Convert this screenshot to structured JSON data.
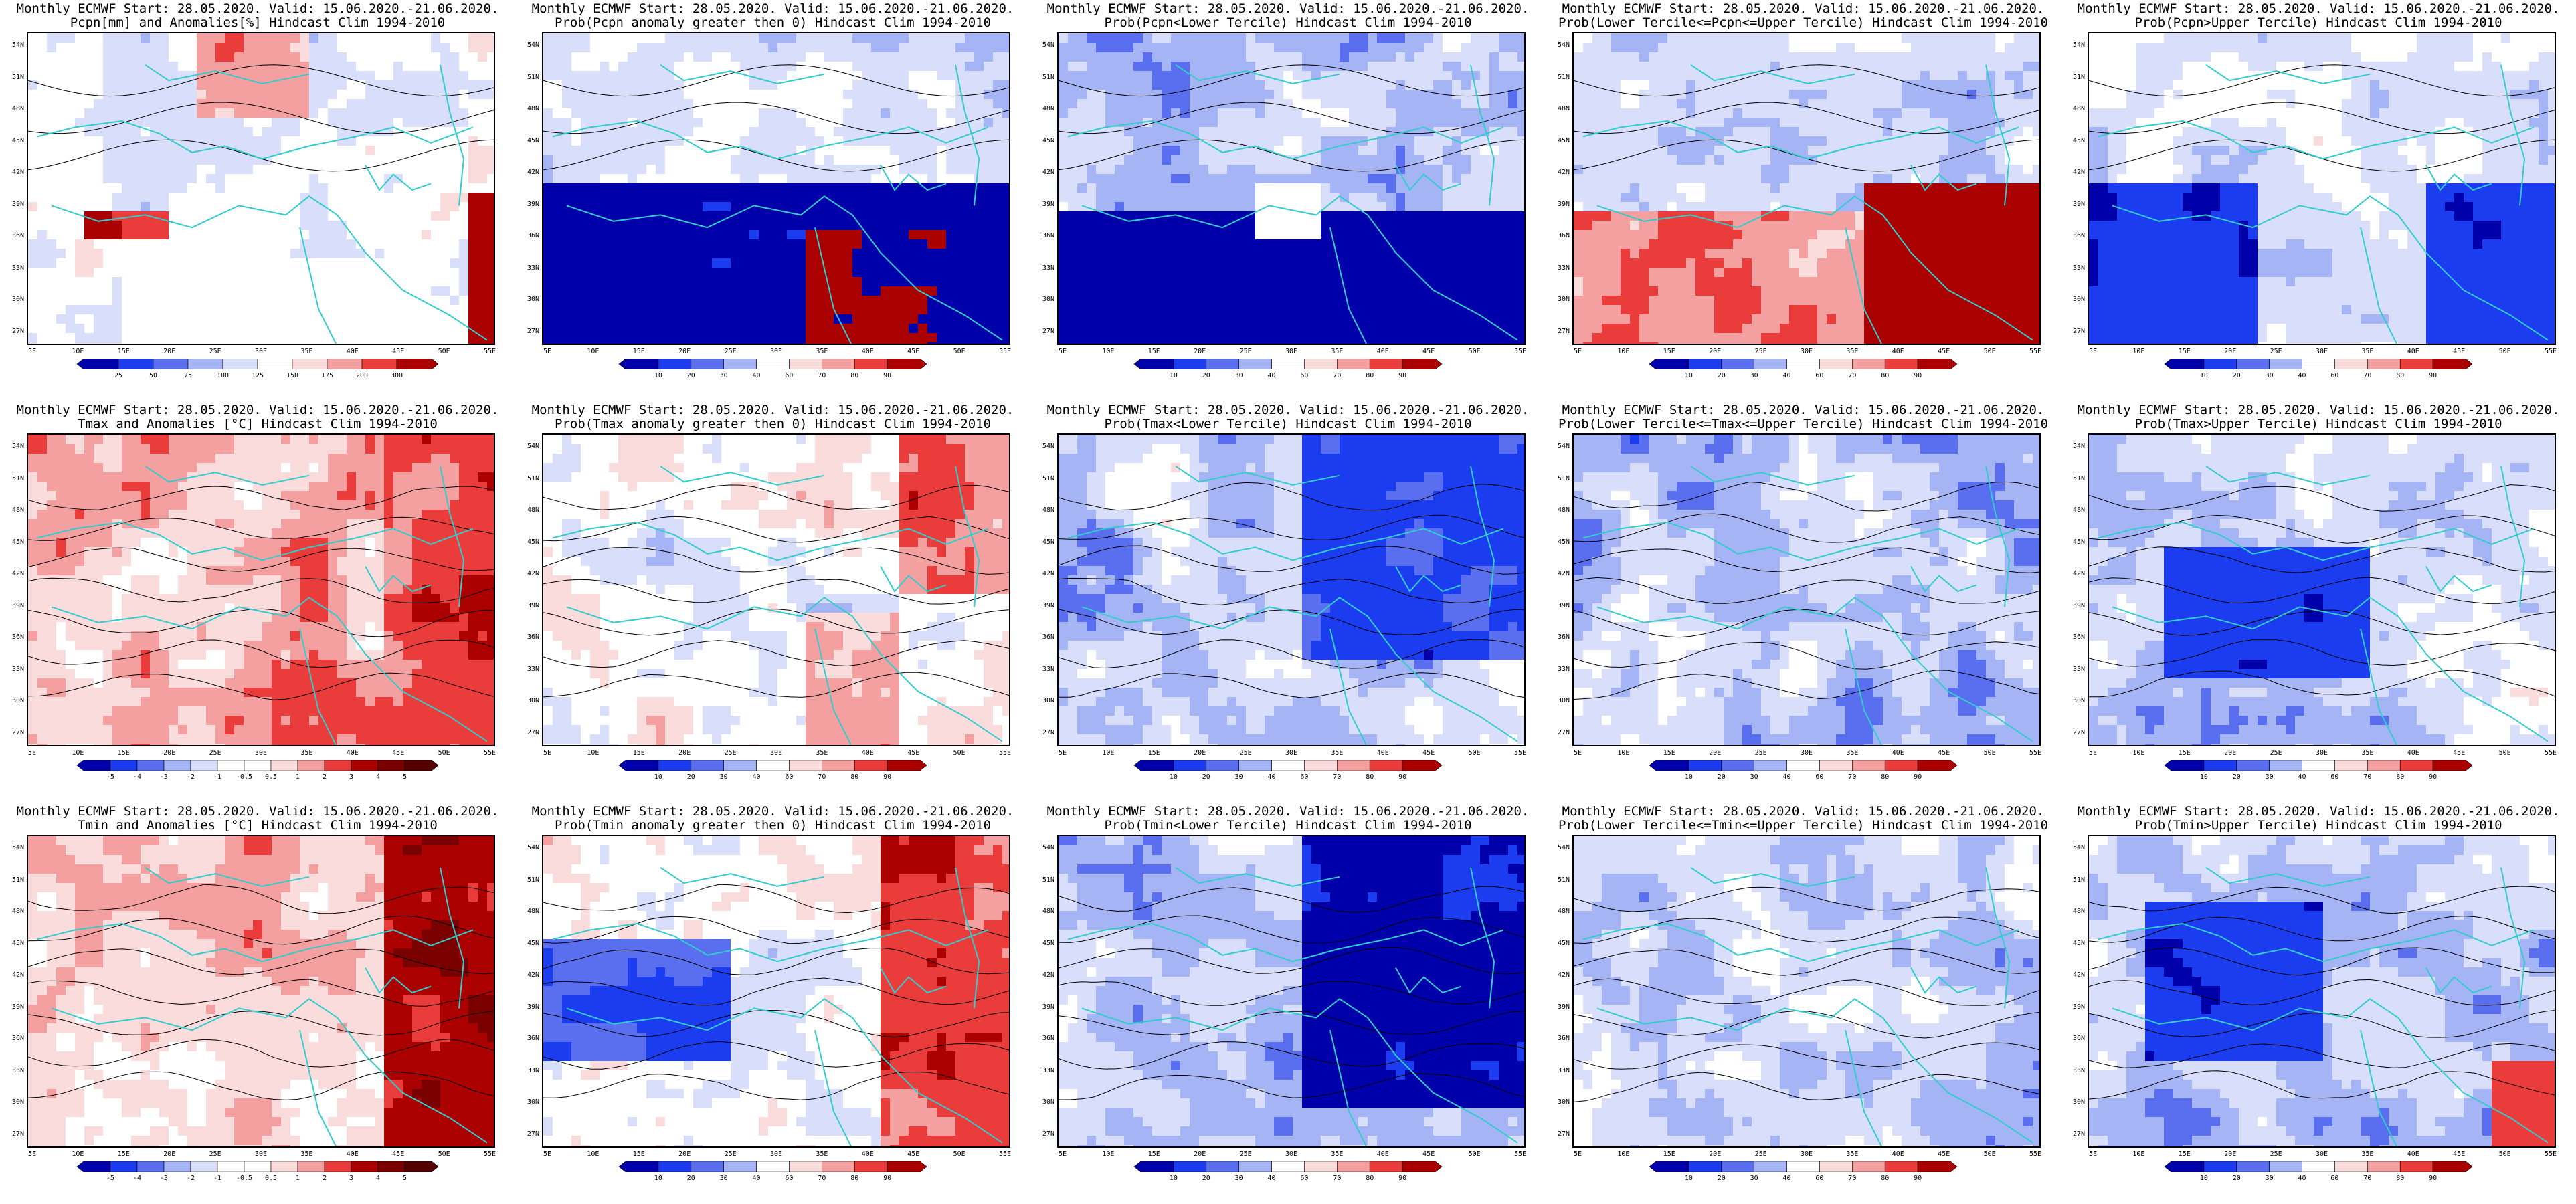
{
  "colors": {
    "darkblue": "#0000aa",
    "blue": "#1c3cf0",
    "medblue": "#5a6ef0",
    "lightblue": "#a5b4f5",
    "paleblue": "#d9defa",
    "white": "#ffffff",
    "palered": "#fadcdc",
    "lightred": "#f5a0a0",
    "red": "#eb3c3c",
    "darkred": "#aa0000",
    "coast": "#33cccc",
    "contour": "#000000"
  },
  "lat_labels": [
    "54N",
    "51N",
    "48N",
    "45N",
    "42N",
    "39N",
    "36N",
    "33N",
    "30N",
    "27N"
  ],
  "lon_labels": [
    "5E",
    "10E",
    "15E",
    "20E",
    "25E",
    "30E",
    "35E",
    "40E",
    "45E",
    "50E",
    "55E"
  ],
  "panels": [
    {
      "id": "pcpn-anom",
      "title1": "Monthly ECMWF Start: 28.05.2020. Valid: 15.06.2020.-21.06.2020.",
      "title2": "Pcpn[mm] and Anomalies[%] Hindcast Clim 1994-2010",
      "scale": "pcpn",
      "ticks": [
        "25",
        "50",
        "75",
        "100",
        "125",
        "150",
        "175",
        "200",
        "300"
      ],
      "field": "pcpn_anom"
    },
    {
      "id": "pcpn-prob-gt0",
      "title1": "Monthly ECMWF Start: 28.05.2020. Valid: 15.06.2020.-21.06.2020.",
      "title2": "Prob(Pcpn anomaly greater then 0) Hindcast Clim 1994-2010",
      "scale": "prob",
      "ticks": [
        "10",
        "20",
        "30",
        "40",
        "60",
        "70",
        "80",
        "90"
      ],
      "field": "pcpn_gt0"
    },
    {
      "id": "pcpn-prob-lower",
      "title1": "Monthly ECMWF Start: 28.05.2020. Valid: 15.06.2020.-21.06.2020.",
      "title2": "Prob(Pcpn<Lower Tercile) Hindcast Clim 1994-2010",
      "scale": "prob",
      "ticks": [
        "10",
        "20",
        "30",
        "40",
        "60",
        "70",
        "80",
        "90"
      ],
      "field": "pcpn_lower"
    },
    {
      "id": "pcpn-prob-middle",
      "title1": "Monthly ECMWF Start: 28.05.2020. Valid: 15.06.2020.-21.06.2020.",
      "title2": "Prob(Lower Tercile<=Pcpn<=Upper Tercile) Hindcast Clim 1994-2010",
      "scale": "prob",
      "ticks": [
        "10",
        "20",
        "30",
        "40",
        "60",
        "70",
        "80",
        "90"
      ],
      "field": "pcpn_middle"
    },
    {
      "id": "pcpn-prob-upper",
      "title1": "Monthly ECMWF Start: 28.05.2020. Valid: 15.06.2020.-21.06.2020.",
      "title2": "Prob(Pcpn>Upper Tercile) Hindcast Clim 1994-2010",
      "scale": "prob",
      "ticks": [
        "10",
        "20",
        "30",
        "40",
        "60",
        "70",
        "80",
        "90"
      ],
      "field": "pcpn_upper"
    },
    {
      "id": "tmax-anom",
      "title1": "Monthly ECMWF Start: 28.05.2020. Valid: 15.06.2020.-21.06.2020.",
      "title2": "Tmax and Anomalies [°C] Hindcast Clim 1994-2010",
      "scale": "temp",
      "ticks": [
        "-5",
        "-4",
        "-3",
        "-2",
        "-1",
        "-0.5",
        "0.5",
        "1",
        "2",
        "3",
        "4",
        "5"
      ],
      "field": "tmax_anom"
    },
    {
      "id": "tmax-prob-gt0",
      "title1": "Monthly ECMWF Start: 28.05.2020. Valid: 15.06.2020.-21.06.2020.",
      "title2": "Prob(Tmax anomaly greater then 0) Hindcast Clim 1994-2010",
      "scale": "prob",
      "ticks": [
        "10",
        "20",
        "30",
        "40",
        "60",
        "70",
        "80",
        "90"
      ],
      "field": "tmax_gt0"
    },
    {
      "id": "tmax-prob-lower",
      "title1": "Monthly ECMWF Start: 28.05.2020. Valid: 15.06.2020.-21.06.2020.",
      "title2": "Prob(Tmax<Lower Tercile) Hindcast Clim 1994-2010",
      "scale": "prob",
      "ticks": [
        "10",
        "20",
        "30",
        "40",
        "60",
        "70",
        "80",
        "90"
      ],
      "field": "tmax_lower"
    },
    {
      "id": "tmax-prob-middle",
      "title1": "Monthly ECMWF Start: 28.05.2020. Valid: 15.06.2020.-21.06.2020.",
      "title2": "Prob(Lower Tercile<=Tmax<=Upper Tercile) Hindcast Clim 1994-2010",
      "scale": "prob",
      "ticks": [
        "10",
        "20",
        "30",
        "40",
        "60",
        "70",
        "80",
        "90"
      ],
      "field": "tmax_middle"
    },
    {
      "id": "tmax-prob-upper",
      "title1": "Monthly ECMWF Start: 28.05.2020. Valid: 15.06.2020.-21.06.2020.",
      "title2": "Prob(Tmax>Upper Tercile) Hindcast Clim 1994-2010",
      "scale": "prob",
      "ticks": [
        "10",
        "20",
        "30",
        "40",
        "60",
        "70",
        "80",
        "90"
      ],
      "field": "tmax_upper"
    },
    {
      "id": "tmin-anom",
      "title1": "Monthly ECMWF Start: 28.05.2020. Valid: 15.06.2020.-21.06.2020.",
      "title2": "Tmin and Anomalies [°C] Hindcast Clim 1994-2010",
      "scale": "temp",
      "ticks": [
        "-5",
        "-4",
        "-3",
        "-2",
        "-1",
        "-0.5",
        "0.5",
        "1",
        "2",
        "3",
        "4",
        "5"
      ],
      "field": "tmin_anom"
    },
    {
      "id": "tmin-prob-gt0",
      "title1": "Monthly ECMWF Start: 28.05.2020. Valid: 15.06.2020.-21.06.2020.",
      "title2": "Prob(Tmin anomaly greater then 0) Hindcast Clim 1994-2010",
      "scale": "prob",
      "ticks": [
        "10",
        "20",
        "30",
        "40",
        "60",
        "70",
        "80",
        "90"
      ],
      "field": "tmin_gt0"
    },
    {
      "id": "tmin-prob-lower",
      "title1": "Monthly ECMWF Start: 28.05.2020. Valid: 15.06.2020.-21.06.2020.",
      "title2": "Prob(Tmin<Lower Tercile) Hindcast Clim 1994-2010",
      "scale": "prob",
      "ticks": [
        "10",
        "20",
        "30",
        "40",
        "60",
        "70",
        "80",
        "90"
      ],
      "field": "tmin_lower"
    },
    {
      "id": "tmin-prob-middle",
      "title1": "Monthly ECMWF Start: 28.05.2020. Valid: 15.06.2020.-21.06.2020.",
      "title2": "Prob(Lower Tercile<=Tmin<=Upper Tercile) Hindcast Clim 1994-2010",
      "scale": "prob",
      "ticks": [
        "10",
        "20",
        "30",
        "40",
        "60",
        "70",
        "80",
        "90"
      ],
      "field": "tmin_middle"
    },
    {
      "id": "tmin-prob-upper",
      "title1": "Monthly ECMWF Start: 28.05.2020. Valid: 15.06.2020.-21.06.2020.",
      "title2": "Prob(Tmin>Upper Tercile) Hindcast Clim 1994-2010",
      "scale": "prob",
      "ticks": [
        "10",
        "20",
        "30",
        "40",
        "60",
        "70",
        "80",
        "90"
      ],
      "field": "tmin_upper"
    }
  ]
}
